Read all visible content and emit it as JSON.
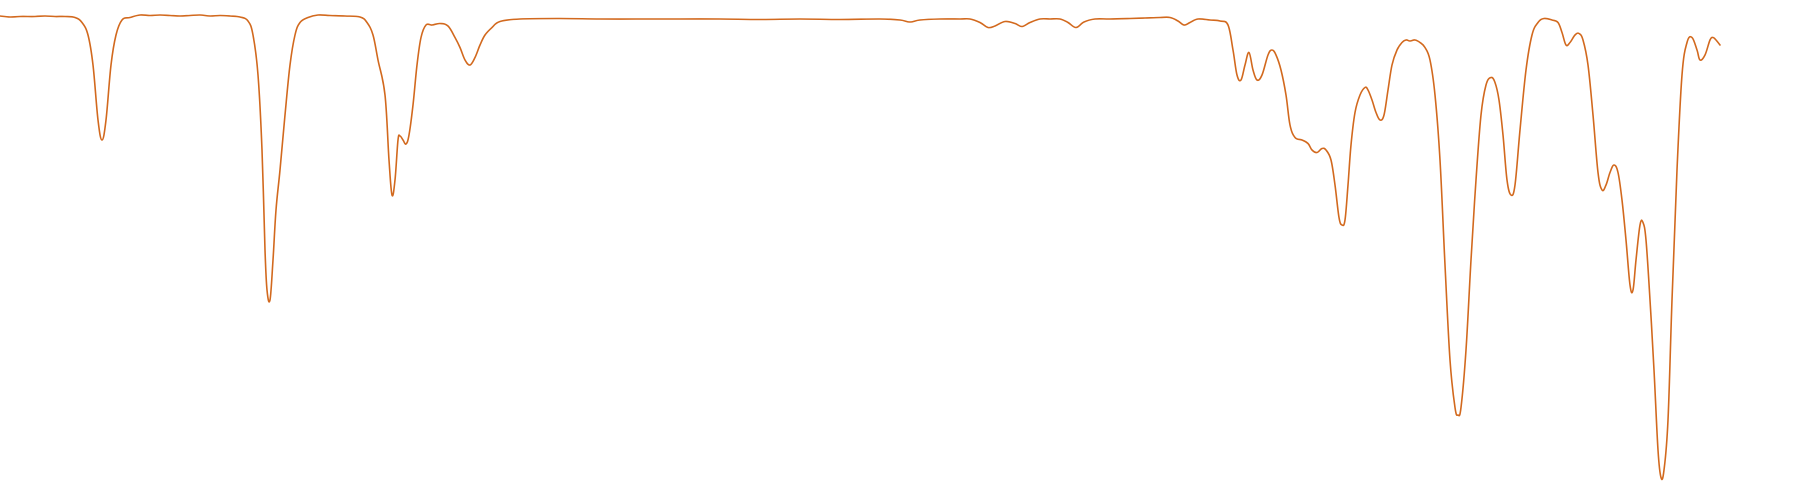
{
  "chart_data": {
    "type": "line",
    "title": "",
    "xlabel": "",
    "ylabel": "",
    "grid": false,
    "legend": "none",
    "axes_visible": false,
    "xlim": [
      0,
      1800
    ],
    "ylim": [
      0,
      1.0
    ],
    "series": [
      {
        "color": "#d2691e",
        "points": [
          [
            0,
            0.968
          ],
          [
            10,
            0.966
          ],
          [
            20,
            0.967
          ],
          [
            35,
            0.967
          ],
          [
            45,
            0.968
          ],
          [
            55,
            0.967
          ],
          [
            65,
            0.967
          ],
          [
            75,
            0.965
          ],
          [
            82,
            0.955
          ],
          [
            88,
            0.93
          ],
          [
            93,
            0.87
          ],
          [
            98,
            0.76
          ],
          [
            102,
            0.72
          ],
          [
            106,
            0.76
          ],
          [
            111,
            0.87
          ],
          [
            116,
            0.93
          ],
          [
            122,
            0.96
          ],
          [
            130,
            0.965
          ],
          [
            140,
            0.97
          ],
          [
            150,
            0.969
          ],
          [
            160,
            0.97
          ],
          [
            170,
            0.969
          ],
          [
            180,
            0.968
          ],
          [
            190,
            0.969
          ],
          [
            200,
            0.97
          ],
          [
            210,
            0.968
          ],
          [
            220,
            0.969
          ],
          [
            230,
            0.968
          ],
          [
            240,
            0.966
          ],
          [
            248,
            0.958
          ],
          [
            253,
            0.93
          ],
          [
            258,
            0.85
          ],
          [
            262,
            0.7
          ],
          [
            265,
            0.5
          ],
          [
            267,
            0.42
          ],
          [
            270,
            0.4
          ],
          [
            273,
            0.48
          ],
          [
            276,
            0.58
          ],
          [
            280,
            0.66
          ],
          [
            285,
            0.77
          ],
          [
            290,
            0.87
          ],
          [
            295,
            0.93
          ],
          [
            300,
            0.955
          ],
          [
            308,
            0.965
          ],
          [
            318,
            0.97
          ],
          [
            330,
            0.969
          ],
          [
            345,
            0.968
          ],
          [
            360,
            0.966
          ],
          [
            367,
            0.955
          ],
          [
            373,
            0.93
          ],
          [
            378,
            0.88
          ],
          [
            385,
            0.81
          ],
          [
            389,
            0.68
          ],
          [
            392,
            0.61
          ],
          [
            395,
            0.64
          ],
          [
            398,
            0.72
          ],
          [
            400,
            0.728
          ],
          [
            403,
            0.72
          ],
          [
            406,
            0.712
          ],
          [
            409,
            0.73
          ],
          [
            413,
            0.79
          ],
          [
            417,
            0.87
          ],
          [
            421,
            0.925
          ],
          [
            426,
            0.95
          ],
          [
            432,
            0.95
          ],
          [
            440,
            0.953
          ],
          [
            448,
            0.948
          ],
          [
            455,
            0.925
          ],
          [
            460,
            0.905
          ],
          [
            465,
            0.88
          ],
          [
            470,
            0.87
          ],
          [
            475,
            0.885
          ],
          [
            480,
            0.91
          ],
          [
            485,
            0.93
          ],
          [
            492,
            0.945
          ],
          [
            500,
            0.957
          ],
          [
            520,
            0.962
          ],
          [
            560,
            0.963
          ],
          [
            600,
            0.962
          ],
          [
            640,
            0.962
          ],
          [
            680,
            0.962
          ],
          [
            720,
            0.962
          ],
          [
            760,
            0.961
          ],
          [
            800,
            0.962
          ],
          [
            840,
            0.961
          ],
          [
            880,
            0.962
          ],
          [
            900,
            0.96
          ],
          [
            910,
            0.956
          ],
          [
            920,
            0.96
          ],
          [
            940,
            0.962
          ],
          [
            960,
            0.962
          ],
          [
            970,
            0.962
          ],
          [
            980,
            0.955
          ],
          [
            988,
            0.945
          ],
          [
            995,
            0.948
          ],
          [
            1005,
            0.957
          ],
          [
            1015,
            0.953
          ],
          [
            1022,
            0.947
          ],
          [
            1030,
            0.955
          ],
          [
            1040,
            0.962
          ],
          [
            1050,
            0.962
          ],
          [
            1060,
            0.962
          ],
          [
            1068,
            0.955
          ],
          [
            1076,
            0.945
          ],
          [
            1084,
            0.956
          ],
          [
            1095,
            0.962
          ],
          [
            1110,
            0.962
          ],
          [
            1130,
            0.963
          ],
          [
            1145,
            0.964
          ],
          [
            1160,
            0.965
          ],
          [
            1170,
            0.965
          ],
          [
            1178,
            0.958
          ],
          [
            1184,
            0.95
          ],
          [
            1190,
            0.955
          ],
          [
            1198,
            0.962
          ],
          [
            1210,
            0.96
          ],
          [
            1220,
            0.958
          ],
          [
            1228,
            0.95
          ],
          [
            1233,
            0.9
          ],
          [
            1237,
            0.85
          ],
          [
            1241,
            0.84
          ],
          [
            1245,
            0.87
          ],
          [
            1249,
            0.895
          ],
          [
            1253,
            0.86
          ],
          [
            1257,
            0.84
          ],
          [
            1262,
            0.85
          ],
          [
            1268,
            0.89
          ],
          [
            1272,
            0.9
          ],
          [
            1276,
            0.89
          ],
          [
            1281,
            0.86
          ],
          [
            1286,
            0.81
          ],
          [
            1290,
            0.75
          ],
          [
            1295,
            0.725
          ],
          [
            1302,
            0.72
          ],
          [
            1308,
            0.713
          ],
          [
            1312,
            0.7
          ],
          [
            1317,
            0.695
          ],
          [
            1322,
            0.703
          ],
          [
            1326,
            0.7
          ],
          [
            1331,
            0.68
          ],
          [
            1335,
            0.63
          ],
          [
            1339,
            0.565
          ],
          [
            1342,
            0.55
          ],
          [
            1345,
            0.56
          ],
          [
            1348,
            0.63
          ],
          [
            1351,
            0.71
          ],
          [
            1355,
            0.775
          ],
          [
            1360,
            0.81
          ],
          [
            1365,
            0.825
          ],
          [
            1368,
            0.82
          ],
          [
            1372,
            0.8
          ],
          [
            1376,
            0.775
          ],
          [
            1380,
            0.76
          ],
          [
            1384,
            0.77
          ],
          [
            1388,
            0.82
          ],
          [
            1392,
            0.87
          ],
          [
            1397,
            0.9
          ],
          [
            1402,
            0.915
          ],
          [
            1406,
            0.92
          ],
          [
            1410,
            0.918
          ],
          [
            1415,
            0.92
          ],
          [
            1420,
            0.915
          ],
          [
            1425,
            0.905
          ],
          [
            1430,
            0.88
          ],
          [
            1435,
            0.81
          ],
          [
            1440,
            0.68
          ],
          [
            1445,
            0.47
          ],
          [
            1450,
            0.28
          ],
          [
            1455,
            0.185
          ],
          [
            1458,
            0.17
          ],
          [
            1461,
            0.185
          ],
          [
            1466,
            0.3
          ],
          [
            1471,
            0.48
          ],
          [
            1476,
            0.64
          ],
          [
            1481,
            0.77
          ],
          [
            1486,
            0.83
          ],
          [
            1491,
            0.845
          ],
          [
            1495,
            0.835
          ],
          [
            1499,
            0.8
          ],
          [
            1503,
            0.73
          ],
          [
            1507,
            0.64
          ],
          [
            1511,
            0.61
          ],
          [
            1515,
            0.63
          ],
          [
            1520,
            0.74
          ],
          [
            1526,
            0.86
          ],
          [
            1532,
            0.93
          ],
          [
            1538,
            0.955
          ],
          [
            1544,
            0.963
          ],
          [
            1552,
            0.96
          ],
          [
            1558,
            0.955
          ],
          [
            1562,
            0.935
          ],
          [
            1566,
            0.91
          ],
          [
            1570,
            0.915
          ],
          [
            1575,
            0.93
          ],
          [
            1579,
            0.933
          ],
          [
            1583,
            0.92
          ],
          [
            1588,
            0.87
          ],
          [
            1593,
            0.77
          ],
          [
            1598,
            0.655
          ],
          [
            1602,
            0.62
          ],
          [
            1606,
            0.63
          ],
          [
            1610,
            0.655
          ],
          [
            1614,
            0.67
          ],
          [
            1618,
            0.655
          ],
          [
            1622,
            0.6
          ],
          [
            1626,
            0.52
          ],
          [
            1630,
            0.43
          ],
          [
            1633,
            0.42
          ],
          [
            1636,
            0.48
          ],
          [
            1640,
            0.55
          ],
          [
            1643,
            0.555
          ],
          [
            1646,
            0.52
          ],
          [
            1650,
            0.4
          ],
          [
            1654,
            0.26
          ],
          [
            1658,
            0.1
          ],
          [
            1661,
            0.045
          ],
          [
            1664,
            0.06
          ],
          [
            1668,
            0.16
          ],
          [
            1672,
            0.4
          ],
          [
            1677,
            0.66
          ],
          [
            1682,
            0.85
          ],
          [
            1687,
            0.915
          ],
          [
            1692,
            0.925
          ],
          [
            1697,
            0.9
          ],
          [
            1700,
            0.88
          ],
          [
            1705,
            0.89
          ],
          [
            1710,
            0.92
          ],
          [
            1713,
            0.925
          ],
          [
            1716,
            0.92
          ],
          [
            1720,
            0.91
          ]
        ]
      }
    ]
  }
}
